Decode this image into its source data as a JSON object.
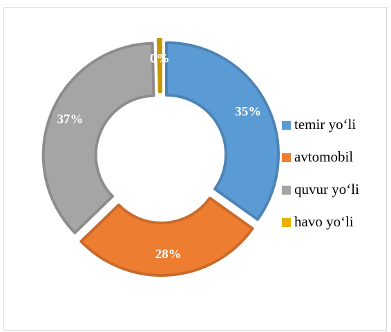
{
  "chart_data": {
    "type": "donut",
    "categories": [
      "temir yo‘li",
      "avtomobil",
      "quvur yo‘li",
      "havo yo‘li"
    ],
    "values": [
      35,
      28,
      37,
      0.4
    ],
    "value_labels": [
      "35%",
      "28%",
      "37%",
      "0%"
    ],
    "colors": [
      "#5b9bd5",
      "#ed7d31",
      "#a5a5a5",
      "#e8b200"
    ],
    "exploded": true,
    "legend": "right"
  }
}
